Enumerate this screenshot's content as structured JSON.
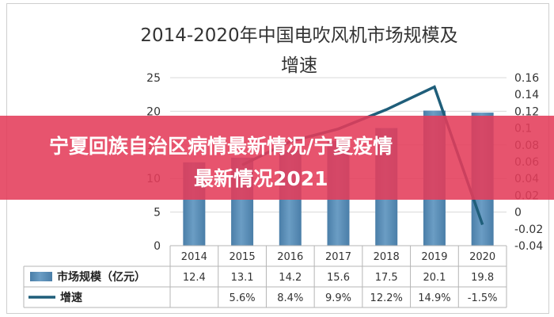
{
  "chart_data": {
    "type": "bar",
    "title_line1": "2014-2020年中国电吹风机市场规模及",
    "title_line2": "增速",
    "categories": [
      "2014",
      "2015",
      "2016",
      "2017",
      "2018",
      "2019",
      "2020"
    ],
    "series": [
      {
        "name": "市场规模（亿元）",
        "type": "bar",
        "axis": "left",
        "values": [
          12.4,
          13.1,
          14.2,
          15.6,
          17.5,
          20.1,
          19.8
        ],
        "labels": [
          "12.4",
          "13.1",
          "14.2",
          "15.6",
          "17.5",
          "20.1",
          "19.8"
        ]
      },
      {
        "name": "增速",
        "type": "line",
        "axis": "right",
        "values": [
          null,
          0.056,
          0.084,
          0.099,
          0.122,
          0.149,
          -0.015
        ],
        "labels": [
          "",
          "5.6%",
          "8.4%",
          "9.9%",
          "12.2%",
          "14.9%",
          "-1.5%"
        ]
      }
    ],
    "ylim_left": [
      0,
      25
    ],
    "ylim_right": [
      -0.04,
      0.16
    ],
    "left_ticks": [
      "0",
      "5",
      "10",
      "15",
      "20",
      "25"
    ],
    "right_ticks": [
      "-0.04",
      "-0.02",
      "0",
      "0.02",
      "0.04",
      "0.06",
      "0.08",
      "0.1",
      "0.12",
      "0.14",
      "0.16"
    ],
    "grid": true,
    "legend": "data-table",
    "colors": {
      "bar": "#6b9dc4",
      "bar_dark": "#4a7ea8",
      "line": "#1f5e7a",
      "grid": "#d9d9d9"
    }
  },
  "banner": {
    "line1": "宁夏回族自治区病情最新情况/宁夏疫情",
    "line2": "最新情况2021",
    "color": "#e43c5a"
  }
}
